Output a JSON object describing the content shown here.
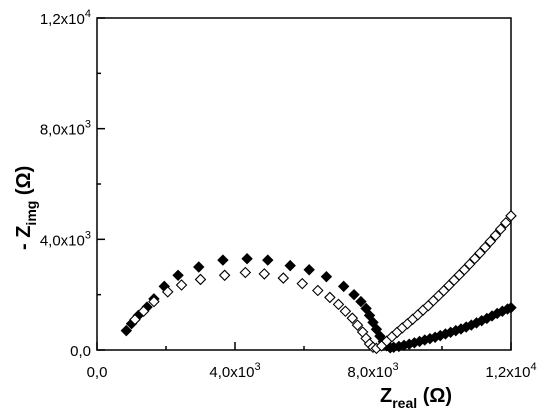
{
  "chart_data": {
    "type": "scatter",
    "title": "",
    "xlabel": {
      "main": "Z",
      "sub": "real",
      "unit": " (Ω)"
    },
    "ylabel": {
      "prefix": "- ",
      "main": "Z",
      "sub": "img",
      "unit": " (Ω)"
    },
    "xlim": [
      0,
      12000
    ],
    "ylim": [
      0,
      12000
    ],
    "grid": false,
    "legend": "none",
    "x_ticks": [
      {
        "value": 0,
        "mantissa": "0,0",
        "exp": ""
      },
      {
        "value": 4000,
        "mantissa": "4,0x10",
        "exp": "3"
      },
      {
        "value": 8000,
        "mantissa": "8,0x10",
        "exp": "3"
      },
      {
        "value": 12000,
        "mantissa": "1,2x10",
        "exp": "4"
      }
    ],
    "y_ticks": [
      {
        "value": 0,
        "mantissa": "0,0",
        "exp": ""
      },
      {
        "value": 4000,
        "mantissa": "4,0x10",
        "exp": "3"
      },
      {
        "value": 8000,
        "mantissa": "8,0x10",
        "exp": "3"
      },
      {
        "value": 12000,
        "mantissa": "1,2x10",
        "exp": "4"
      }
    ],
    "series": [
      {
        "marker": "diamond-filled",
        "color": "#000000",
        "points": [
          [
            850,
            700
          ],
          [
            1000,
            950
          ],
          [
            1200,
            1250
          ],
          [
            1450,
            1550
          ],
          [
            1650,
            1850
          ],
          [
            1950,
            2300
          ],
          [
            2350,
            2700
          ],
          [
            2950,
            3000
          ],
          [
            3650,
            3250
          ],
          [
            4350,
            3300
          ],
          [
            4950,
            3250
          ],
          [
            5600,
            3050
          ],
          [
            6150,
            2900
          ],
          [
            6650,
            2650
          ],
          [
            7150,
            2300
          ],
          [
            7450,
            2000
          ],
          [
            7650,
            1750
          ],
          [
            7800,
            1500
          ],
          [
            7900,
            1250
          ],
          [
            8000,
            1000
          ],
          [
            8100,
            750
          ],
          [
            8200,
            500
          ],
          [
            8300,
            300
          ],
          [
            8400,
            150
          ],
          [
            8500,
            80
          ],
          [
            8600,
            100
          ],
          [
            8750,
            130
          ],
          [
            8900,
            170
          ],
          [
            9050,
            210
          ],
          [
            9200,
            260
          ],
          [
            9350,
            310
          ],
          [
            9500,
            360
          ],
          [
            9650,
            410
          ],
          [
            9800,
            460
          ],
          [
            9950,
            520
          ],
          [
            10100,
            580
          ],
          [
            10250,
            640
          ],
          [
            10400,
            700
          ],
          [
            10550,
            760
          ],
          [
            10700,
            830
          ],
          [
            10850,
            900
          ],
          [
            11000,
            980
          ],
          [
            11150,
            1060
          ],
          [
            11300,
            1140
          ],
          [
            11450,
            1230
          ],
          [
            11600,
            1320
          ],
          [
            11750,
            1400
          ],
          [
            11900,
            1480
          ],
          [
            12000,
            1530
          ]
        ]
      },
      {
        "marker": "diamond-open",
        "color": "#000000",
        "points": [
          [
            1100,
            1100
          ],
          [
            1350,
            1400
          ],
          [
            1650,
            1750
          ],
          [
            2050,
            2100
          ],
          [
            2450,
            2350
          ],
          [
            3000,
            2550
          ],
          [
            3700,
            2700
          ],
          [
            4300,
            2800
          ],
          [
            4850,
            2750
          ],
          [
            5400,
            2600
          ],
          [
            5950,
            2400
          ],
          [
            6400,
            2150
          ],
          [
            6750,
            1900
          ],
          [
            7000,
            1650
          ],
          [
            7200,
            1400
          ],
          [
            7400,
            1150
          ],
          [
            7550,
            900
          ],
          [
            7700,
            650
          ],
          [
            7800,
            420
          ],
          [
            7900,
            220
          ],
          [
            8000,
            100
          ],
          [
            8100,
            60
          ],
          [
            8250,
            150
          ],
          [
            8400,
            320
          ],
          [
            8550,
            480
          ],
          [
            8700,
            640
          ],
          [
            8850,
            800
          ],
          [
            9000,
            950
          ],
          [
            9150,
            1110
          ],
          [
            9300,
            1270
          ],
          [
            9450,
            1440
          ],
          [
            9600,
            1600
          ],
          [
            9750,
            1780
          ],
          [
            9900,
            1960
          ],
          [
            10050,
            2140
          ],
          [
            10200,
            2330
          ],
          [
            10350,
            2520
          ],
          [
            10500,
            2710
          ],
          [
            10650,
            2900
          ],
          [
            10800,
            3100
          ],
          [
            10950,
            3300
          ],
          [
            11100,
            3500
          ],
          [
            11250,
            3710
          ],
          [
            11400,
            3920
          ],
          [
            11550,
            4140
          ],
          [
            11700,
            4370
          ],
          [
            11850,
            4600
          ],
          [
            12000,
            4850
          ]
        ]
      }
    ]
  }
}
